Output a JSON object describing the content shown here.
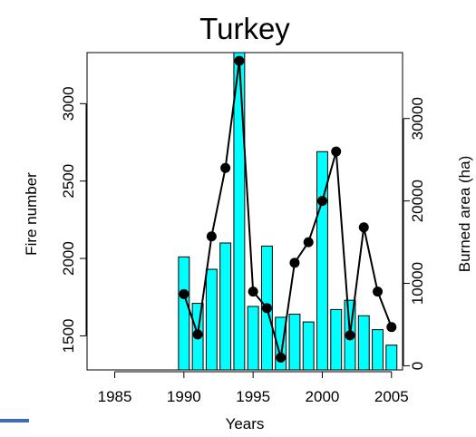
{
  "chart_data": {
    "type": "bar+line",
    "title": "Turkey",
    "xlabel": "Years",
    "ylabel_left": "Fire number",
    "ylabel_right": "Burned area (ha)",
    "xlim": [
      1983,
      2005.8
    ],
    "x_ticks": [
      1985,
      1990,
      1995,
      2000,
      2005
    ],
    "x_tick_labels": [
      "1985",
      "1990",
      "1995",
      "2000",
      "2005"
    ],
    "ylim_left": [
      1280,
      3330
    ],
    "y_ticks_left": [
      1500,
      2000,
      2500,
      3000
    ],
    "y_tick_labels_left": [
      "1500",
      "2000",
      "2500",
      "3000"
    ],
    "ylim_right": [
      -500,
      38000
    ],
    "y_ticks_right": [
      0,
      10000,
      20000,
      30000
    ],
    "y_tick_labels_right": [
      "0",
      "10000",
      "20000",
      "30000"
    ],
    "bars_axis": "left",
    "line_axis": "right",
    "bar_color": "#00FFFF",
    "line_color": "#000000",
    "grid": false,
    "legend": "none",
    "series": [
      {
        "kind": "bar",
        "x": [
          1990,
          1991,
          1992,
          1993,
          1994,
          1995,
          1996,
          1997,
          1998,
          1999,
          2000,
          2001,
          2002,
          2003,
          2004,
          2005
        ],
        "values": [
          2010,
          1710,
          1930,
          2100,
          3330,
          1690,
          2080,
          1620,
          1640,
          1590,
          2690,
          1670,
          1730,
          1630,
          1540,
          1440
        ]
      },
      {
        "kind": "line",
        "x": [
          1990,
          1991,
          1992,
          1993,
          1994,
          1995,
          1996,
          1997,
          1998,
          1999,
          2000,
          2001,
          2002,
          2003,
          2004,
          2005
        ],
        "values": [
          8700,
          3800,
          15700,
          24000,
          37000,
          9000,
          7000,
          1000,
          12500,
          15000,
          20000,
          26000,
          3700,
          16800,
          9000,
          4700
        ]
      }
    ]
  }
}
